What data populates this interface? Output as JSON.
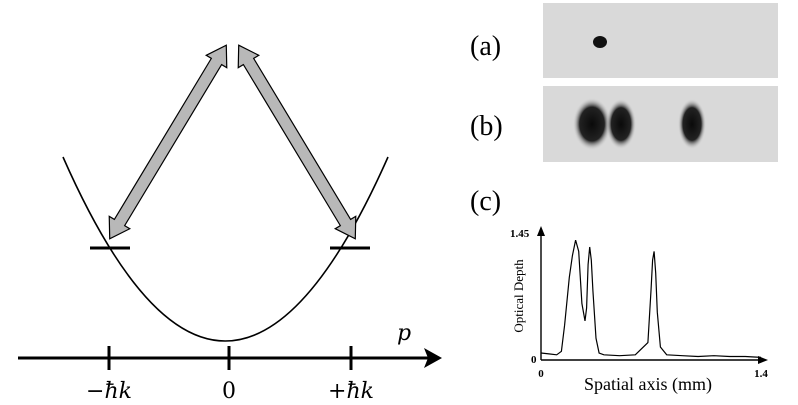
{
  "left_panel": {
    "axis_label": "p",
    "ticks": [
      "−ħk",
      "0",
      "+ħk"
    ]
  },
  "right_panel": {
    "panel_a_label": "(a)",
    "panel_b_label": "(b)",
    "panel_c_label": "(c)",
    "plot_c": {
      "ylabel": "Optical Depth",
      "xlabel": "Spatial axis (mm)",
      "y_min_label": "0",
      "y_max_label": "1.45",
      "x_min_label": "0",
      "x_max_label": "1.4"
    }
  },
  "colors": {
    "arrow_fill": "#b8b8b8",
    "image_bg": "#d9d9d9",
    "ink": "#000000"
  },
  "chart_data": {
    "type": "line",
    "xlim": [
      0,
      1.4
    ],
    "ylim": [
      0,
      1.45
    ],
    "xlabel": "Spatial axis (mm)",
    "ylabel": "Optical Depth",
    "x": [
      0.0,
      0.05,
      0.1,
      0.13,
      0.15,
      0.18,
      0.2,
      0.22,
      0.24,
      0.26,
      0.28,
      0.29,
      0.3,
      0.31,
      0.32,
      0.33,
      0.35,
      0.37,
      0.4,
      0.5,
      0.6,
      0.68,
      0.7,
      0.71,
      0.72,
      0.73,
      0.74,
      0.76,
      0.8,
      0.9,
      1.0,
      1.1,
      1.2,
      1.3,
      1.4
    ],
    "series": [
      {
        "values": [
          0.08,
          0.07,
          0.06,
          0.1,
          0.4,
          0.95,
          1.2,
          1.38,
          1.25,
          0.65,
          0.45,
          0.6,
          1.1,
          1.3,
          1.15,
          0.8,
          0.25,
          0.08,
          0.06,
          0.05,
          0.06,
          0.2,
          0.8,
          1.15,
          1.25,
          1.0,
          0.55,
          0.15,
          0.06,
          0.05,
          0.04,
          0.05,
          0.04,
          0.04,
          0.03
        ]
      }
    ]
  }
}
